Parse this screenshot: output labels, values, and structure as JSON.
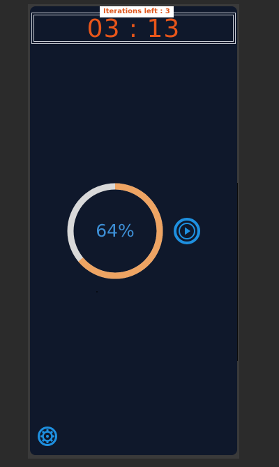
{
  "timer": {
    "iterations_label": "Iterations left : 3",
    "display": "03 : 13"
  },
  "progress": {
    "percent_label": "64%",
    "value": 0.64,
    "colors": {
      "fill": "#eea463",
      "track": "#d9d9d9",
      "text": "#3d8fd6"
    }
  },
  "controls": {
    "play_icon": "play-circle-icon",
    "settings_icon": "gear-icon",
    "accent": "#1e90e0"
  },
  "theme": {
    "background": "#0f182b",
    "timer_color": "#e8561a"
  }
}
